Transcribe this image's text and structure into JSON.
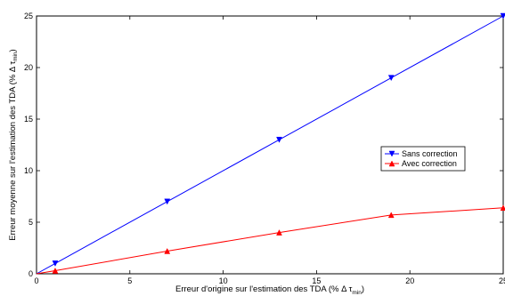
{
  "chart_data": {
    "type": "line",
    "title": "",
    "xlabel": {
      "main": "Erreur d'origine sur l'estimation des TDA (% Δ τ",
      "sub": "min",
      "close": ")"
    },
    "ylabel": {
      "main": "Erreur moyenne sur l'estimation des TDA (% Δ τ",
      "sub": "min",
      "close": ")"
    },
    "xlim": [
      0,
      25
    ],
    "ylim": [
      0,
      25
    ],
    "xticks": [
      0,
      5,
      10,
      15,
      20,
      25
    ],
    "yticks": [
      0,
      5,
      10,
      15,
      20,
      25
    ],
    "grid": false,
    "legend_position": "right-middle",
    "series": [
      {
        "name": "Sans correction",
        "color": "#0000ff",
        "marker": "triangle-down",
        "x": [
          0,
          1,
          7,
          13,
          19,
          25
        ],
        "y": [
          0,
          1,
          7,
          13,
          19,
          25
        ]
      },
      {
        "name": "Avec correction",
        "color": "#ff0000",
        "marker": "triangle-up",
        "x": [
          0,
          1,
          7,
          13,
          19,
          25
        ],
        "y": [
          0,
          0.3,
          2.2,
          4.0,
          5.7,
          6.4
        ]
      }
    ]
  }
}
